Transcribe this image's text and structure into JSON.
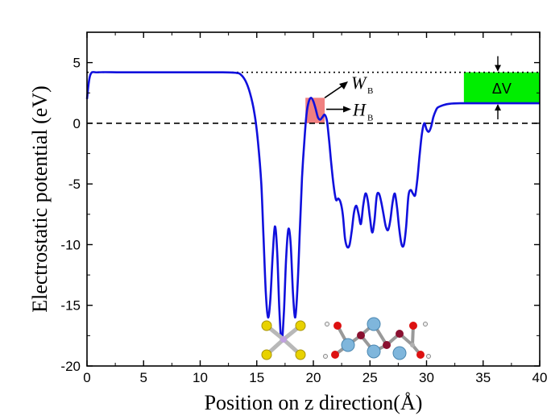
{
  "chart_data": {
    "type": "line",
    "title": "",
    "xlabel": "Position on z direction(Å)",
    "ylabel": "Electrostatic potential (eV)",
    "xlim": [
      0,
      40
    ],
    "ylim": [
      -20,
      7.5
    ],
    "xticks": [
      0,
      5,
      10,
      15,
      20,
      25,
      30,
      35,
      40
    ],
    "yticks": [
      -20,
      -15,
      -10,
      -5,
      0,
      5
    ],
    "grid": false,
    "colors": {
      "curve": "#1010dd",
      "barrier_box": "#f08080",
      "delta_box": "#00ee00",
      "axis": "#000000"
    },
    "series": [
      {
        "x": [
          0,
          0.3,
          1,
          3,
          6,
          9,
          12,
          13.2,
          13.6,
          14,
          14.4,
          14.8,
          15.1,
          15.4,
          15.6,
          15.8,
          16,
          16.2,
          16.4,
          16.6,
          16.8,
          17,
          17.2,
          17.4,
          17.6,
          17.8,
          18,
          18.2,
          18.4,
          18.6,
          18.8,
          19,
          19.2,
          19.4,
          19.6,
          19.8,
          20,
          20.2,
          20.4,
          20.6,
          20.8,
          21,
          21.2,
          21.4,
          21.6,
          21.8,
          22,
          22.2,
          22.4,
          22.6,
          22.8,
          23,
          23.2,
          23.4,
          23.6,
          23.8,
          24,
          24.2,
          24.4,
          24.6,
          24.8,
          25,
          25.2,
          25.4,
          25.6,
          25.8,
          26,
          26.2,
          26.4,
          26.6,
          26.8,
          27,
          27.2,
          27.4,
          27.6,
          27.8,
          28,
          28.2,
          28.4,
          28.6,
          28.8,
          29,
          29.2,
          29.4,
          29.6,
          29.8,
          30,
          30.2,
          30.4,
          30.6,
          30.8,
          31,
          31.5,
          32,
          33,
          35,
          37,
          40
        ],
        "y": [
          2.0,
          4.0,
          4.2,
          4.2,
          4.2,
          4.2,
          4.2,
          4.15,
          4.0,
          3.5,
          2.5,
          0.8,
          -1.5,
          -5.0,
          -9.5,
          -14.0,
          -16.0,
          -14.5,
          -11.0,
          -8.5,
          -10.5,
          -15.5,
          -18.0,
          -15.5,
          -11.0,
          -8.7,
          -10.0,
          -14.0,
          -16.0,
          -13.5,
          -9.0,
          -4.5,
          -1.5,
          0.8,
          1.8,
          2.1,
          1.8,
          1.2,
          0.5,
          0.3,
          0.5,
          0.7,
          0.2,
          -1.5,
          -3.5,
          -5.2,
          -6.3,
          -6.2,
          -6.5,
          -7.5,
          -9.5,
          -10.2,
          -10.0,
          -8.8,
          -7.3,
          -6.8,
          -7.5,
          -8.3,
          -6.8,
          -5.8,
          -6.3,
          -7.8,
          -9.0,
          -8.0,
          -6.0,
          -5.8,
          -6.5,
          -7.5,
          -8.5,
          -8.8,
          -8.0,
          -6.5,
          -5.8,
          -7.0,
          -8.8,
          -10.0,
          -10.0,
          -8.5,
          -6.0,
          -5.5,
          -5.8,
          -5.9,
          -4.5,
          -2.5,
          -0.8,
          0.0,
          -0.5,
          -0.7,
          -0.3,
          0.5,
          1.0,
          1.3,
          1.5,
          1.6,
          1.65,
          1.65,
          1.65,
          1.65
        ]
      }
    ],
    "reference_lines": [
      {
        "style": "dotted",
        "y": 4.2
      },
      {
        "style": "dashed",
        "y": 0
      }
    ],
    "annotations": [
      {
        "main": "W",
        "sub": "B"
      },
      {
        "main": "H",
        "sub": "B"
      },
      {
        "main": "ΔV"
      }
    ],
    "barrier_box": {
      "x0": 19.3,
      "x1": 21.0,
      "y0": 0,
      "y1": 2.1
    },
    "delta_box": {
      "x0": 33.3,
      "x1": 40,
      "y0": 1.65,
      "y1": 4.2
    }
  }
}
